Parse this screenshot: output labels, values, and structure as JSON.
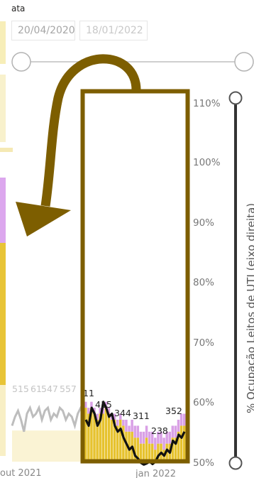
{
  "date_filter": {
    "label": "ata",
    "start": "20/04/2020",
    "end": "18/01/2022"
  },
  "chart_data": {
    "type": "bar",
    "y2label": "% Ocupação Leitos de UTI (eixo direita)",
    "y2ticks": [
      "110%",
      "100%",
      "90%",
      "80%",
      "70%",
      "60%",
      "50%"
    ],
    "y2lim": [
      0.5,
      1.1
    ],
    "x_tick_labels": [
      "out 2021",
      "jan 2022"
    ],
    "faded_labels": [
      "515",
      "61",
      "547",
      "557"
    ],
    "highlight_labels": [
      "11",
      "415",
      "344",
      "311",
      "238",
      "352"
    ],
    "highlight_series": [
      {
        "name": "",
        "values": [
          0.6,
          0.59,
          0.6,
          0.59,
          0.58,
          0.59,
          0.59,
          0.6,
          0.59,
          0.58,
          0.58,
          0.57,
          0.58,
          0.57,
          0.57,
          0.56,
          0.57,
          0.56,
          0.56,
          0.55,
          0.55,
          0.56,
          0.55,
          0.55,
          0.54,
          0.55,
          0.55,
          0.54,
          0.55,
          0.55,
          0.56,
          0.56,
          0.57,
          0.58,
          0.58
        ],
        "color": "#d9a0e6"
      },
      {
        "name": "",
        "values": [
          0.59,
          0.58,
          0.59,
          0.58,
          0.57,
          0.58,
          0.58,
          0.59,
          0.58,
          0.57,
          0.57,
          0.56,
          0.57,
          0.56,
          0.55,
          0.55,
          0.55,
          0.54,
          0.54,
          0.53,
          0.53,
          0.54,
          0.53,
          0.53,
          0.52,
          0.53,
          0.53,
          0.52,
          0.53,
          0.53,
          0.54,
          0.54,
          0.55,
          0.56,
          0.56
        ],
        "color": "#e6c22e"
      }
    ],
    "highlight_line": [
      0.57,
      0.56,
      0.59,
      0.58,
      0.56,
      0.57,
      0.6,
      0.59,
      0.575,
      0.58,
      0.56,
      0.55,
      0.555,
      0.54,
      0.53,
      0.52,
      0.525,
      0.51,
      0.505,
      0.498,
      0.495,
      0.497,
      0.5,
      0.496,
      0.5,
      0.51,
      0.515,
      0.51,
      0.52,
      0.515,
      0.535,
      0.53,
      0.545,
      0.54,
      0.55
    ],
    "faded_line": [
      0.56,
      0.575,
      0.585,
      0.57,
      0.55,
      0.58,
      0.59,
      0.575,
      0.58,
      0.59,
      0.57,
      0.585,
      0.59,
      0.57,
      0.58,
      0.575,
      0.59,
      0.585,
      0.57,
      0.58,
      0.575,
      0.56,
      0.58,
      0.59,
      0.575
    ],
    "faded_bar_level": 0.552
  }
}
